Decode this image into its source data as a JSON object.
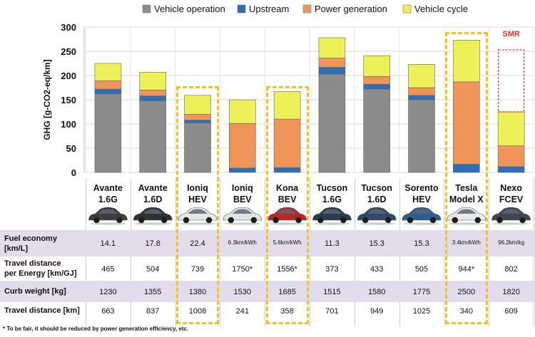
{
  "chart_data": {
    "type": "bar",
    "stacked": true,
    "ylabel": "GHG [g-CO2-eq/km]",
    "ylim": [
      0,
      300
    ],
    "yticks": [
      0,
      50,
      100,
      150,
      200,
      250,
      300
    ],
    "grid": true,
    "legend_position": "top",
    "categories": [
      "Avante 1.6G",
      "Avante 1.6D",
      "Ioniq HEV",
      "Ioniq BEV",
      "Kona BEV",
      "Tucson 1.6G",
      "Tucson 1.6D",
      "Sorento HEV",
      "Tesla Model X",
      "Nexo FCEV"
    ],
    "category_lines": [
      [
        "Avante",
        "1.6G"
      ],
      [
        "Avante",
        "1.6D"
      ],
      [
        "Ioniq",
        "HEV"
      ],
      [
        "Ioniq",
        "BEV"
      ],
      [
        "Kona",
        "BEV"
      ],
      [
        "Tucson",
        "1.6G"
      ],
      [
        "Tucson",
        "1.6D"
      ],
      [
        "Sorento",
        "HEV"
      ],
      [
        "Tesla",
        "Model X"
      ],
      [
        "Nexo",
        "FCEV"
      ]
    ],
    "series": [
      {
        "name": "Vehicle operation",
        "color": "#8c8c8c",
        "values": [
          162,
          148,
          102,
          0,
          0,
          203,
          172,
          150,
          0,
          0
        ]
      },
      {
        "name": "Upstream",
        "color": "#2e6eb5",
        "values": [
          10,
          10,
          6,
          9,
          10,
          14,
          10,
          9,
          17,
          12
        ]
      },
      {
        "name": "Power generation",
        "color": "#f0955a",
        "values": [
          17,
          12,
          12,
          92,
          100,
          19,
          16,
          16,
          170,
          43
        ]
      },
      {
        "name": "Vehicle cycle",
        "color": "#eef057",
        "values": [
          36,
          37,
          39,
          49,
          57,
          42,
          43,
          48,
          86,
          70
        ]
      }
    ],
    "highlighted_categories": [
      "Ioniq HEV",
      "Kona BEV",
      "Tesla Model X"
    ],
    "annotation": {
      "label": "SMR",
      "category": "Nexo FCEV",
      "top_value": 253,
      "color": "#e03030"
    }
  },
  "table": {
    "rows": [
      {
        "label": "Fuel economy [km/L]",
        "label_lines": [
          "Fuel economy",
          "[km/L]"
        ],
        "shaded": true,
        "values": [
          "14.1",
          "17.8",
          "22.4",
          "6.3km/kWh",
          "5.6km/kWh",
          "11.3",
          "15.3",
          "15.3",
          "3.4km/kWh",
          "96.2km/kg"
        ],
        "small": [
          false,
          false,
          false,
          true,
          true,
          false,
          false,
          false,
          true,
          true
        ]
      },
      {
        "label": "Travel distance per Energy [km/GJ]",
        "label_lines": [
          "Travel distance",
          "per Energy [km/GJ]"
        ],
        "shaded": false,
        "values": [
          "465",
          "504",
          "739",
          "1750*",
          "1556*",
          "373",
          "433",
          "505",
          "944*",
          "802"
        ],
        "small": [
          false,
          false,
          false,
          false,
          false,
          false,
          false,
          false,
          false,
          false
        ]
      },
      {
        "label": "Curb weight [kg]",
        "label_lines": [
          "Curb weight [kg]"
        ],
        "shaded": true,
        "values": [
          "1230",
          "1355",
          "1380",
          "1530",
          "1685",
          "1515",
          "1580",
          "1775",
          "2500",
          "1820"
        ],
        "small": [
          false,
          false,
          false,
          false,
          false,
          false,
          false,
          false,
          false,
          false
        ]
      },
      {
        "label": "Travel distance [km]",
        "label_lines": [
          "Travel distance [km]"
        ],
        "shaded": false,
        "values": [
          "663",
          "837",
          "1008",
          "241",
          "358",
          "701",
          "949",
          "1025",
          "340",
          "609"
        ],
        "small": [
          false,
          false,
          false,
          false,
          false,
          false,
          false,
          false,
          false,
          false
        ]
      }
    ]
  },
  "car_colors": [
    "#3a3d42",
    "#2f3136",
    "#e4e6ea",
    "#e1e3e6",
    "#b8262b",
    "#2c3a50",
    "#2f4a6e",
    "#2d5f8c",
    "#e8e9eb",
    "#3f4652"
  ],
  "footnote": "* To be fair, it should be reduced by power generation efficiency, etc."
}
